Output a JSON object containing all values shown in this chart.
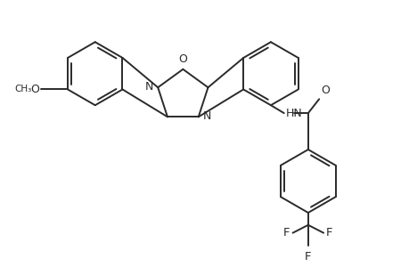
{
  "bg_color": "#ffffff",
  "line_color": "#2a2a2a",
  "line_width": 1.4,
  "figsize": [
    4.6,
    3.0
  ],
  "dpi": 100,
  "xlim": [
    0,
    9.2
  ],
  "ylim": [
    0,
    6.0
  ],
  "ring_r": 0.72,
  "pent_r": 0.6
}
